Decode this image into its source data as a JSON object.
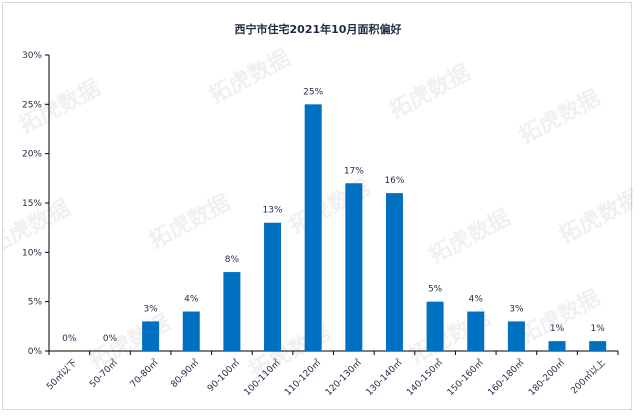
{
  "chart_data": {
    "type": "bar",
    "title": "西宁市住宅2021年10月面积偏好",
    "categories": [
      "50㎡以下",
      "50-70㎡",
      "70-80㎡",
      "80-90㎡",
      "90-100㎡",
      "100-110㎡",
      "110-120㎡",
      "120-130㎡",
      "130-140㎡",
      "140-150㎡",
      "150-160㎡",
      "160-180㎡",
      "180-200㎡",
      "200㎡以上"
    ],
    "values": [
      0,
      0,
      3,
      4,
      8,
      13,
      25,
      17,
      16,
      5,
      4,
      3,
      1,
      1
    ],
    "data_labels": [
      "0%",
      "0%",
      "3%",
      "4%",
      "8%",
      "13%",
      "25%",
      "17%",
      "16%",
      "5%",
      "4%",
      "3%",
      "1%",
      "1%"
    ],
    "y_ticks": [
      "0%",
      "5%",
      "10%",
      "15%",
      "20%",
      "25%",
      "30%"
    ],
    "ylim": [
      0,
      30
    ],
    "grid": false,
    "legend": "none",
    "bar_color": "#0070c0",
    "watermark": "拓虎数据"
  }
}
